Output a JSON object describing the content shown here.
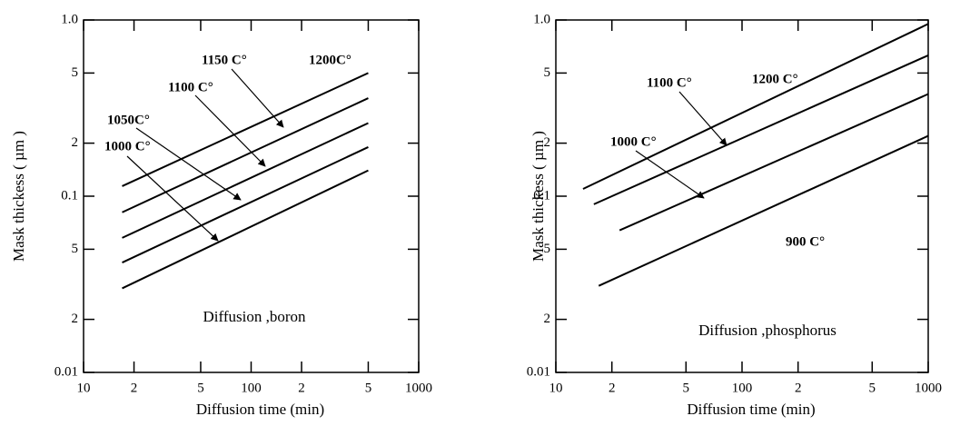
{
  "chart_data": [
    {
      "type": "line",
      "annotation": "Diffusion ,boron",
      "x_label": "Diffusion time (min)",
      "y_label": "Mask thickess ( µm )",
      "xscale": "log",
      "yscale": "log",
      "xlim": [
        10,
        1000
      ],
      "ylim": [
        0.01,
        1.0
      ],
      "xticks": [
        10,
        {
          "value": 20,
          "label": "2"
        },
        {
          "value": 50,
          "label": "5"
        },
        100,
        {
          "value": 200,
          "label": "2"
        },
        {
          "value": 500,
          "label": "5"
        },
        1000
      ],
      "yticks": [
        0.01,
        {
          "value": 0.02,
          "label": "2"
        },
        {
          "value": 0.05,
          "label": "5"
        },
        0.1,
        {
          "value": 0.2,
          "label": "2"
        },
        {
          "value": 0.5,
          "label": "5"
        },
        {
          "value": 1.0,
          "label": "1.0"
        }
      ],
      "series": [
        {
          "name": "1000 C°",
          "color": "#000000",
          "x": [
            17,
            500
          ],
          "values": [
            0.03,
            0.14
          ]
        },
        {
          "name": "1050C°",
          "color": "#000000",
          "x": [
            17,
            500
          ],
          "values": [
            0.042,
            0.19
          ]
        },
        {
          "name": "1100 C°",
          "color": "#000000",
          "x": [
            17,
            500
          ],
          "values": [
            0.058,
            0.26
          ]
        },
        {
          "name": "1150 C°",
          "color": "#000000",
          "x": [
            17,
            500
          ],
          "values": [
            0.081,
            0.36
          ]
        },
        {
          "name": "1200C°",
          "color": "#000000",
          "x": [
            17,
            500
          ],
          "values": [
            0.114,
            0.5
          ]
        }
      ]
    },
    {
      "type": "line",
      "annotation": "Diffusion ,phosphorus",
      "x_label": "Diffusion time (min)",
      "y_label": "Mask thickess ( µm )",
      "xscale": "log",
      "yscale": "log",
      "xlim": [
        10,
        1000
      ],
      "ylim": [
        0.01,
        1.0
      ],
      "xticks": [
        10,
        {
          "value": 20,
          "label": "2"
        },
        {
          "value": 50,
          "label": "5"
        },
        100,
        {
          "value": 200,
          "label": "2"
        },
        {
          "value": 500,
          "label": "5"
        },
        1000
      ],
      "yticks": [
        0.01,
        {
          "value": 0.02,
          "label": "2"
        },
        {
          "value": 0.05,
          "label": "5"
        },
        0.1,
        {
          "value": 0.2,
          "label": "2"
        },
        {
          "value": 0.5,
          "label": "5"
        },
        {
          "value": 1.0,
          "label": "1.0"
        }
      ],
      "series": [
        {
          "name": "900 C°",
          "color": "#000000",
          "x": [
            17,
            1000
          ],
          "values": [
            0.031,
            0.22
          ]
        },
        {
          "name": "1000 C°",
          "color": "#000000",
          "x": [
            22,
            1000
          ],
          "values": [
            0.064,
            0.38
          ]
        },
        {
          "name": "1100 C°",
          "color": "#000000",
          "x": [
            16,
            1000
          ],
          "values": [
            0.09,
            0.63
          ]
        },
        {
          "name": "1200 C°",
          "color": "#000000",
          "x": [
            14,
            1000
          ],
          "values": [
            0.11,
            0.95
          ]
        }
      ]
    }
  ]
}
